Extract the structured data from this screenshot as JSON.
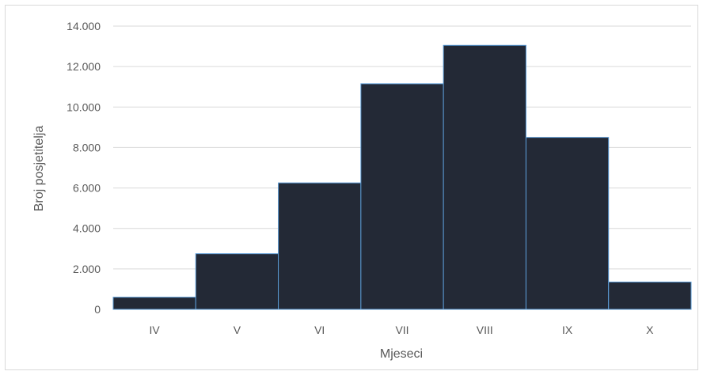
{
  "colors": {
    "bar_fill": "#232936",
    "bar_stroke": "#5b9bd5",
    "grid": "#d9d9d9",
    "text": "#595959"
  },
  "chart_data": {
    "type": "bar",
    "categories": [
      "IV",
      "V",
      "VI",
      "VII",
      "VIII",
      "IX",
      "X"
    ],
    "values": [
      600,
      2750,
      6250,
      11150,
      13050,
      8500,
      1350
    ],
    "xlabel": "Mjeseci",
    "ylabel": "Broj posjetitelja",
    "ylim": [
      0,
      14000
    ],
    "yticks": [
      0,
      2000,
      4000,
      6000,
      8000,
      10000,
      12000,
      14000
    ],
    "ytick_labels": [
      "0",
      "2.000",
      "4.000",
      "6.000",
      "8.000",
      "10.000",
      "12.000",
      "14.000"
    ],
    "grid": true,
    "legend": "none"
  }
}
